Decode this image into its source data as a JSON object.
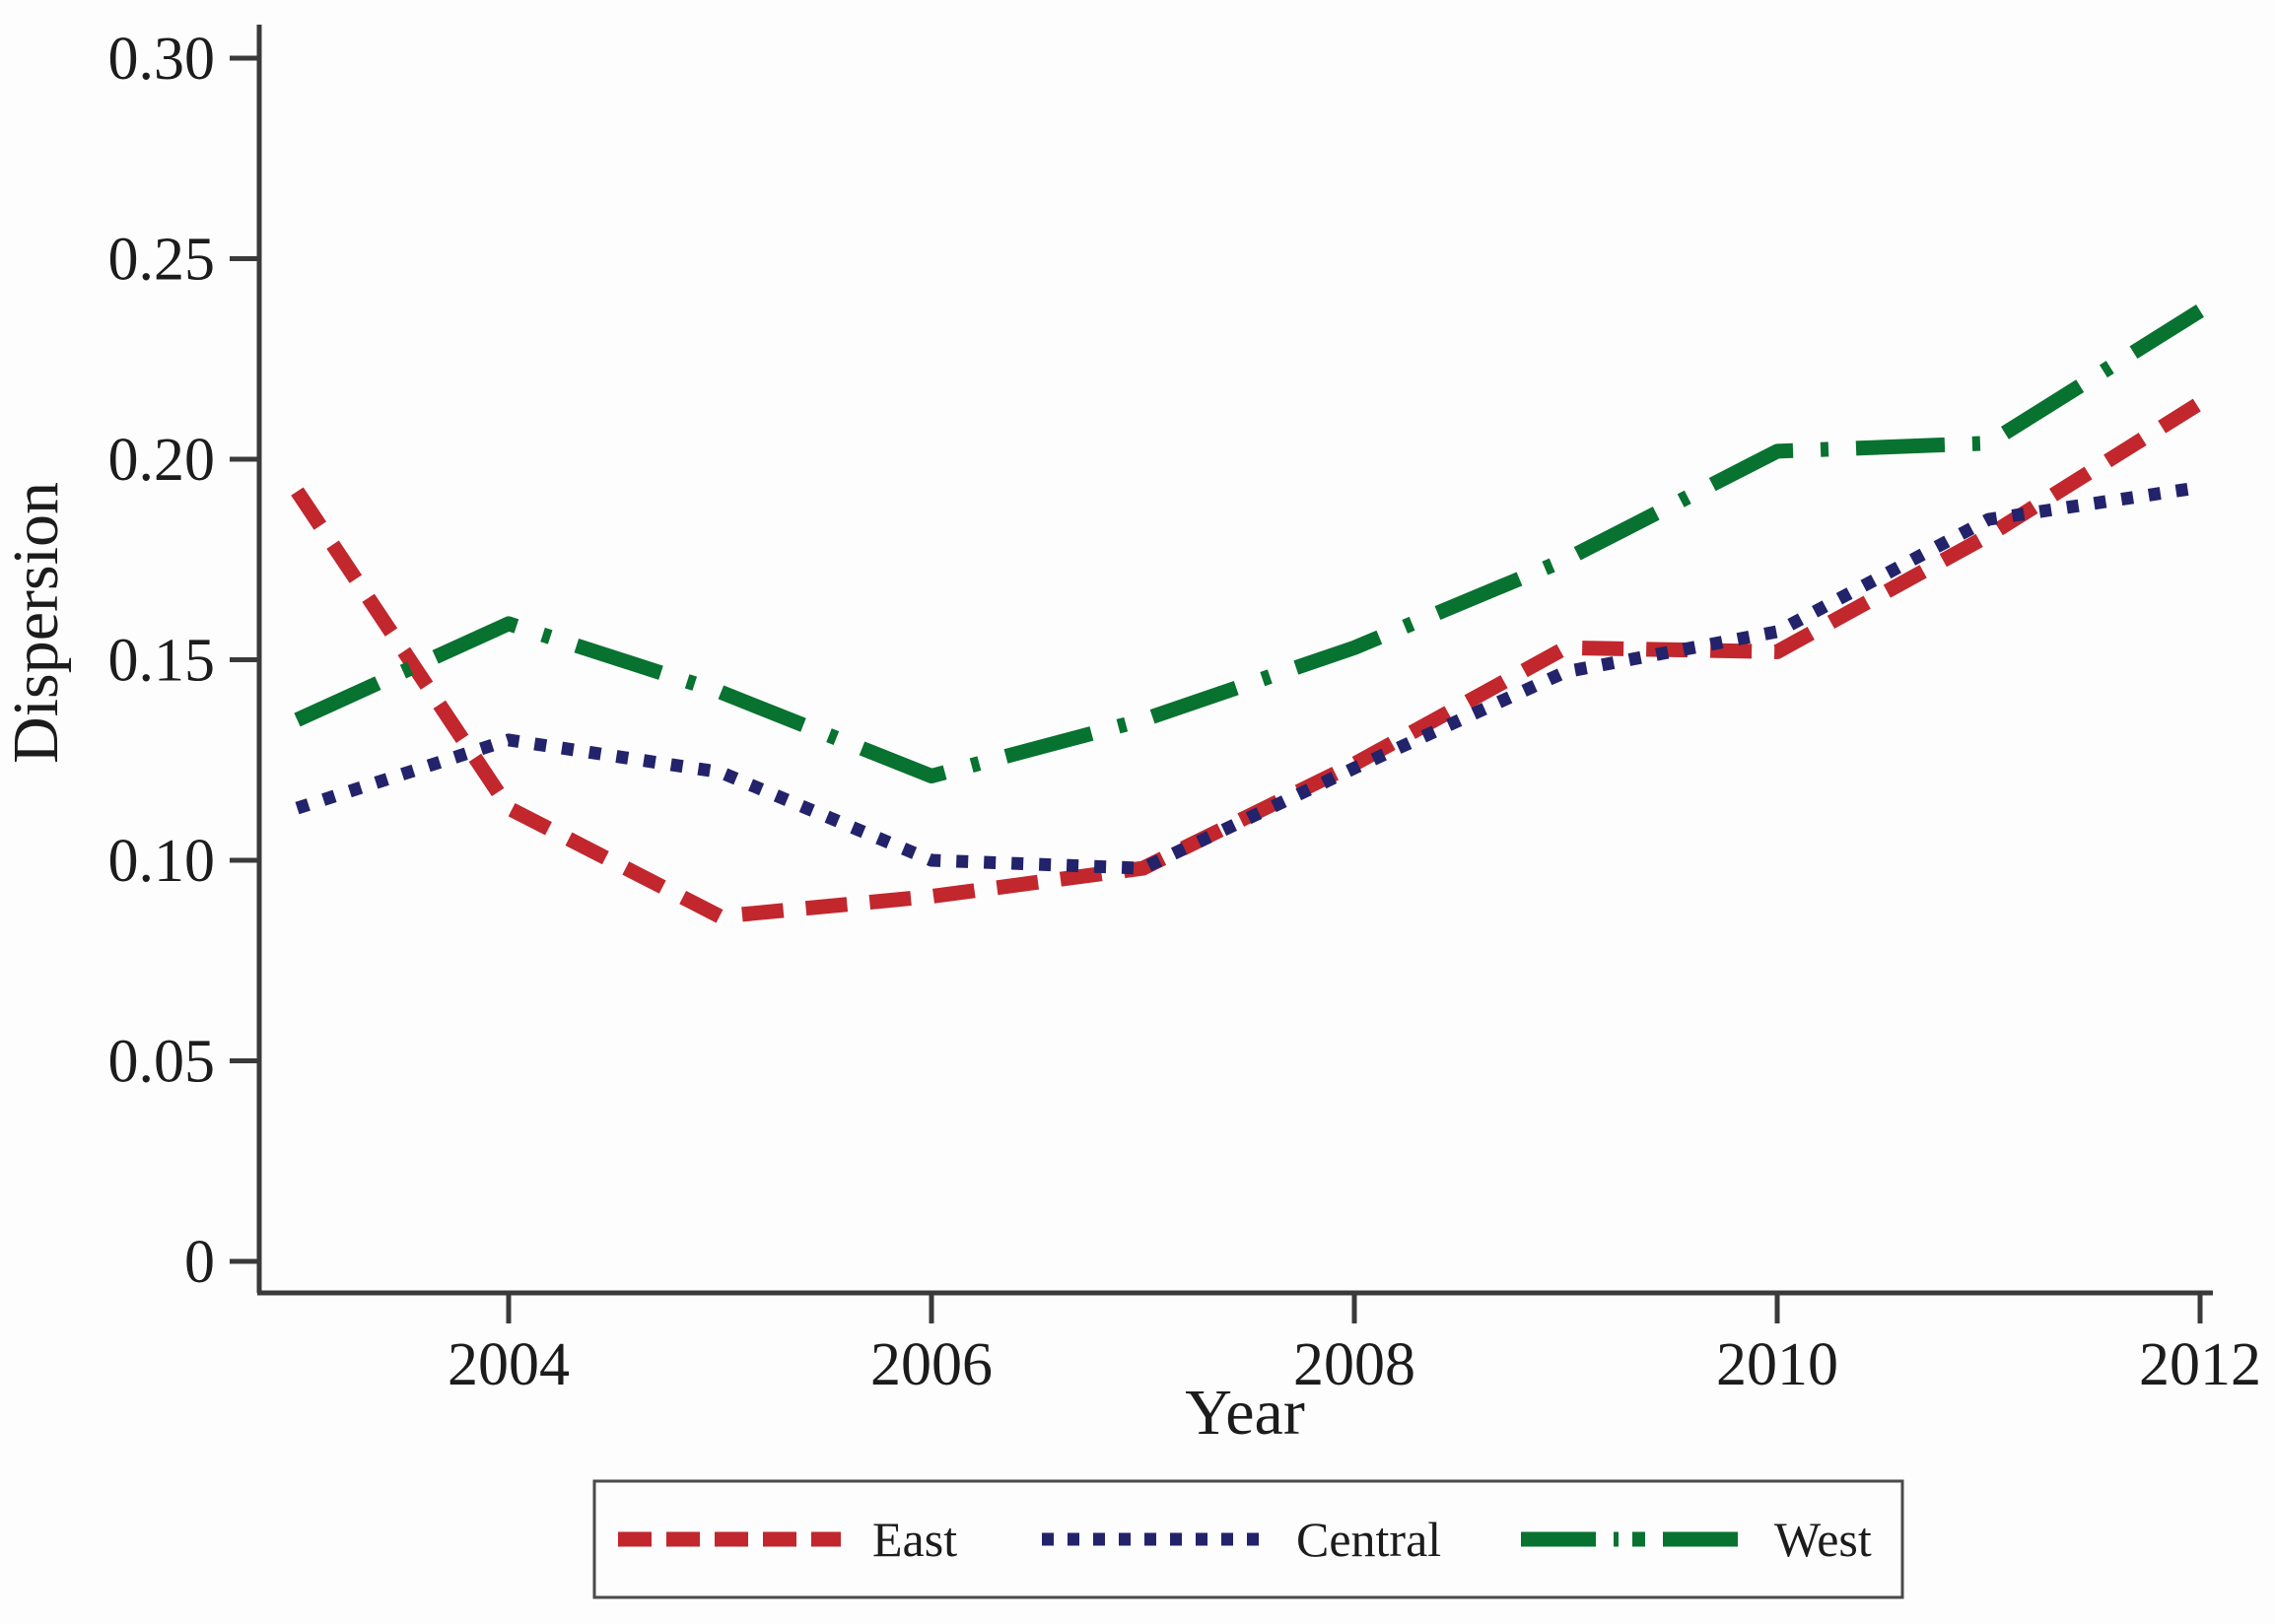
{
  "figure": {
    "background": "#fdfdfd",
    "axis_color": "#3a3a3a",
    "text_color": "#1c1c1c",
    "legend_border_color": "#4a4a4a"
  },
  "chart_data": {
    "type": "line",
    "title": "",
    "xlabel": "Year",
    "ylabel": "Dispersion",
    "grid": false,
    "legend_position": "bottom",
    "xlim": [
      2003,
      2012
    ],
    "ylim": [
      0,
      0.3
    ],
    "x": [
      2003,
      2004,
      2005,
      2006,
      2007,
      2008,
      2009,
      2010,
      2011,
      2012
    ],
    "series": [
      {
        "name": "East",
        "color": "#c1272d",
        "style": "dashed",
        "values": [
          0.192,
          0.113,
          0.086,
          0.091,
          0.098,
          0.124,
          0.153,
          0.152,
          0.181,
          0.214
        ]
      },
      {
        "name": "Central",
        "color": "#23236b",
        "style": "dotted",
        "values": [
          0.113,
          0.13,
          0.122,
          0.1,
          0.098,
          0.123,
          0.147,
          0.157,
          0.185,
          0.193
        ]
      },
      {
        "name": "West",
        "color": "#087230",
        "style": "dashdot",
        "values": [
          0.135,
          0.159,
          0.142,
          0.121,
          0.135,
          0.153,
          0.175,
          0.202,
          0.204,
          0.237
        ]
      }
    ],
    "x_ticks": [
      {
        "value": 2004,
        "label": "2004"
      },
      {
        "value": 2006,
        "label": "2006"
      },
      {
        "value": 2008,
        "label": "2008"
      },
      {
        "value": 2010,
        "label": "2010"
      },
      {
        "value": 2012,
        "label": "2012"
      }
    ],
    "y_ticks": [
      {
        "value": 0.0,
        "label": "0"
      },
      {
        "value": 0.05,
        "label": "0.05"
      },
      {
        "value": 0.1,
        "label": "0.10"
      },
      {
        "value": 0.15,
        "label": "0.15"
      },
      {
        "value": 0.2,
        "label": "0.20"
      },
      {
        "value": 0.25,
        "label": "0.25"
      },
      {
        "value": 0.3,
        "label": "0.30"
      }
    ]
  }
}
